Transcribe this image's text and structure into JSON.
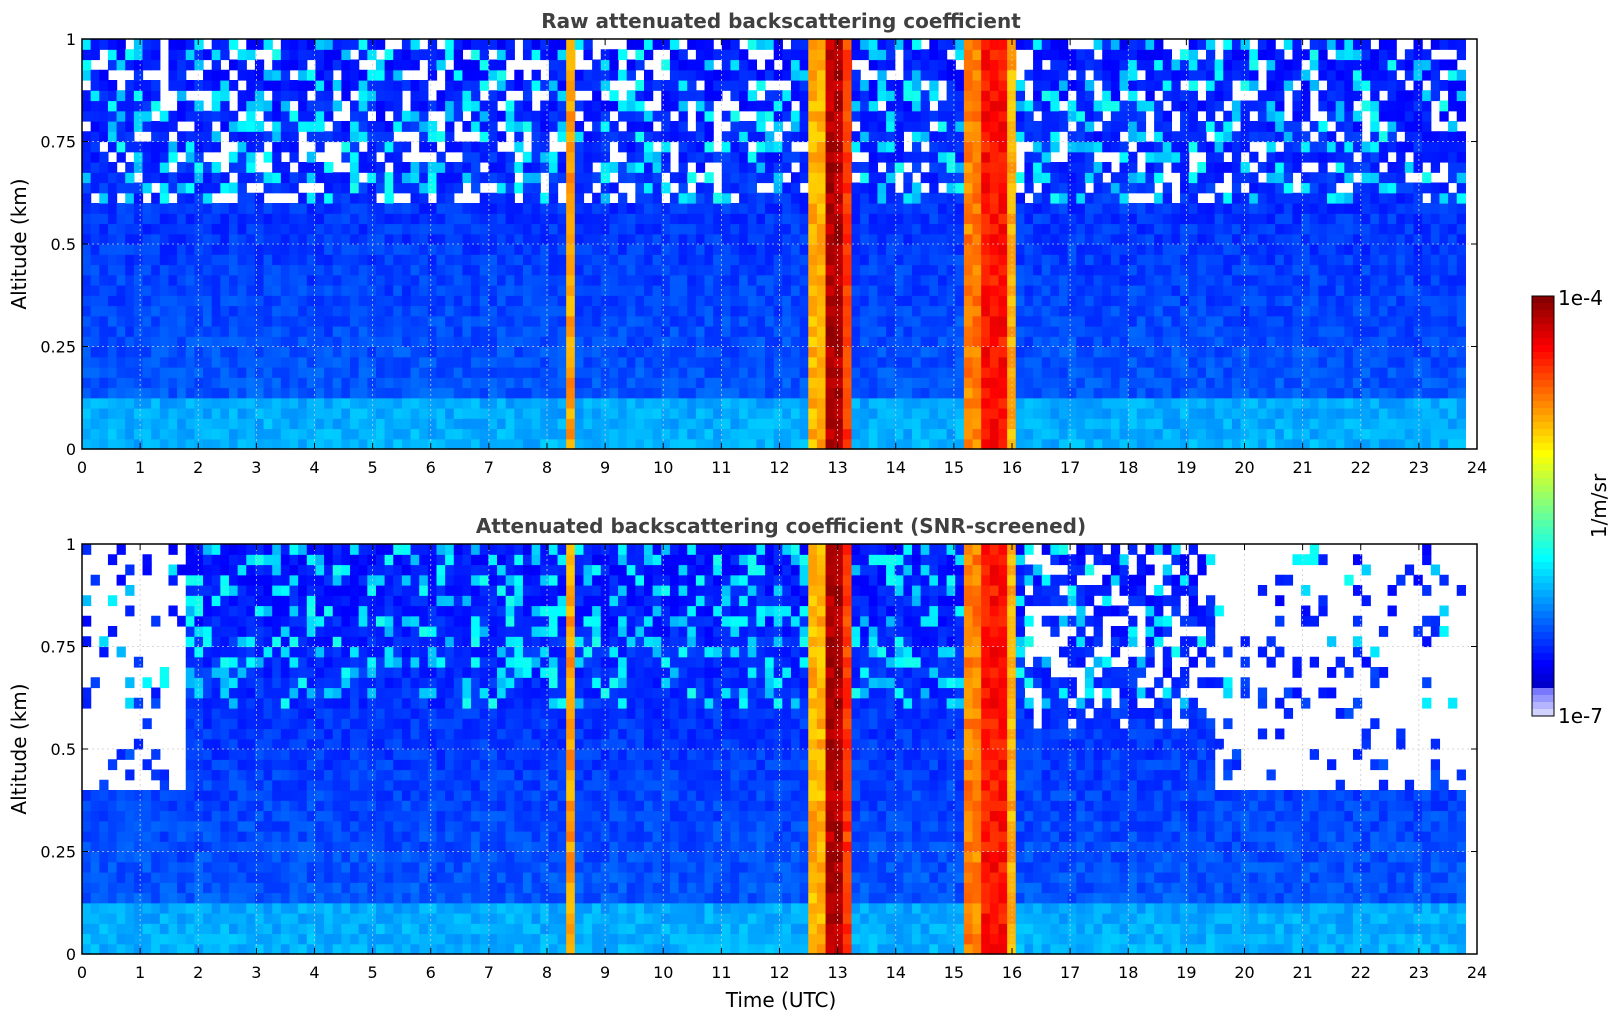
{
  "chart_data": [
    {
      "type": "heatmap",
      "title": "Raw attenuated backscattering coefficient",
      "xlabel": "",
      "ylabel": "Altitude (km)",
      "xlim": [
        0,
        24
      ],
      "ylim": [
        0,
        1
      ],
      "xticks": [
        "0",
        "1",
        "2",
        "3",
        "4",
        "5",
        "6",
        "7",
        "8",
        "9",
        "10",
        "11",
        "12",
        "13",
        "14",
        "15",
        "16",
        "17",
        "18",
        "19",
        "20",
        "21",
        "22",
        "23",
        "24"
      ],
      "yticks": [
        "0",
        "0.25",
        "0.5",
        "0.75",
        "1"
      ],
      "ytick_values": [
        0,
        0.25,
        0.5,
        0.75,
        1
      ],
      "grid": true,
      "screened": false,
      "data_end_hour": 23.8,
      "cloud_bands": [
        {
          "start": 8.3,
          "end": 8.55,
          "level": 0.72
        },
        {
          "start": 12.5,
          "end": 12.75,
          "level": 0.7
        },
        {
          "start": 12.75,
          "end": 13.1,
          "level": 0.95
        },
        {
          "start": 13.1,
          "end": 13.25,
          "level": 0.82
        },
        {
          "start": 15.15,
          "end": 15.4,
          "level": 0.75
        },
        {
          "start": 15.4,
          "end": 15.9,
          "level": 0.86
        },
        {
          "start": 15.9,
          "end": 16.05,
          "level": 0.7
        }
      ]
    },
    {
      "type": "heatmap",
      "title": "Attenuated backscattering coefficient (SNR-screened)",
      "xlabel": "Time (UTC)",
      "ylabel": "Altitude (km)",
      "xlim": [
        0,
        24
      ],
      "ylim": [
        0,
        1
      ],
      "xticks": [
        "0",
        "1",
        "2",
        "3",
        "4",
        "5",
        "6",
        "7",
        "8",
        "9",
        "10",
        "11",
        "12",
        "13",
        "14",
        "15",
        "16",
        "17",
        "18",
        "19",
        "20",
        "21",
        "22",
        "23",
        "24"
      ],
      "yticks": [
        "0",
        "0.25",
        "0.5",
        "0.75",
        "1"
      ],
      "ytick_values": [
        0,
        0.25,
        0.5,
        0.75,
        1
      ],
      "grid": true,
      "screened": true,
      "data_end_hour": 23.8,
      "cloud_bands": [
        {
          "start": 8.3,
          "end": 8.55,
          "level": 0.72
        },
        {
          "start": 12.5,
          "end": 12.75,
          "level": 0.7
        },
        {
          "start": 12.75,
          "end": 13.1,
          "level": 0.95
        },
        {
          "start": 13.1,
          "end": 13.25,
          "level": 0.82
        },
        {
          "start": 15.15,
          "end": 15.4,
          "level": 0.75
        },
        {
          "start": 15.4,
          "end": 15.9,
          "level": 0.86
        },
        {
          "start": 15.9,
          "end": 16.05,
          "level": 0.7
        }
      ]
    }
  ],
  "colorbar": {
    "label": "1/m/sr",
    "max_label": "1e-4",
    "min_label": "1e-7",
    "colormap": "jet"
  }
}
